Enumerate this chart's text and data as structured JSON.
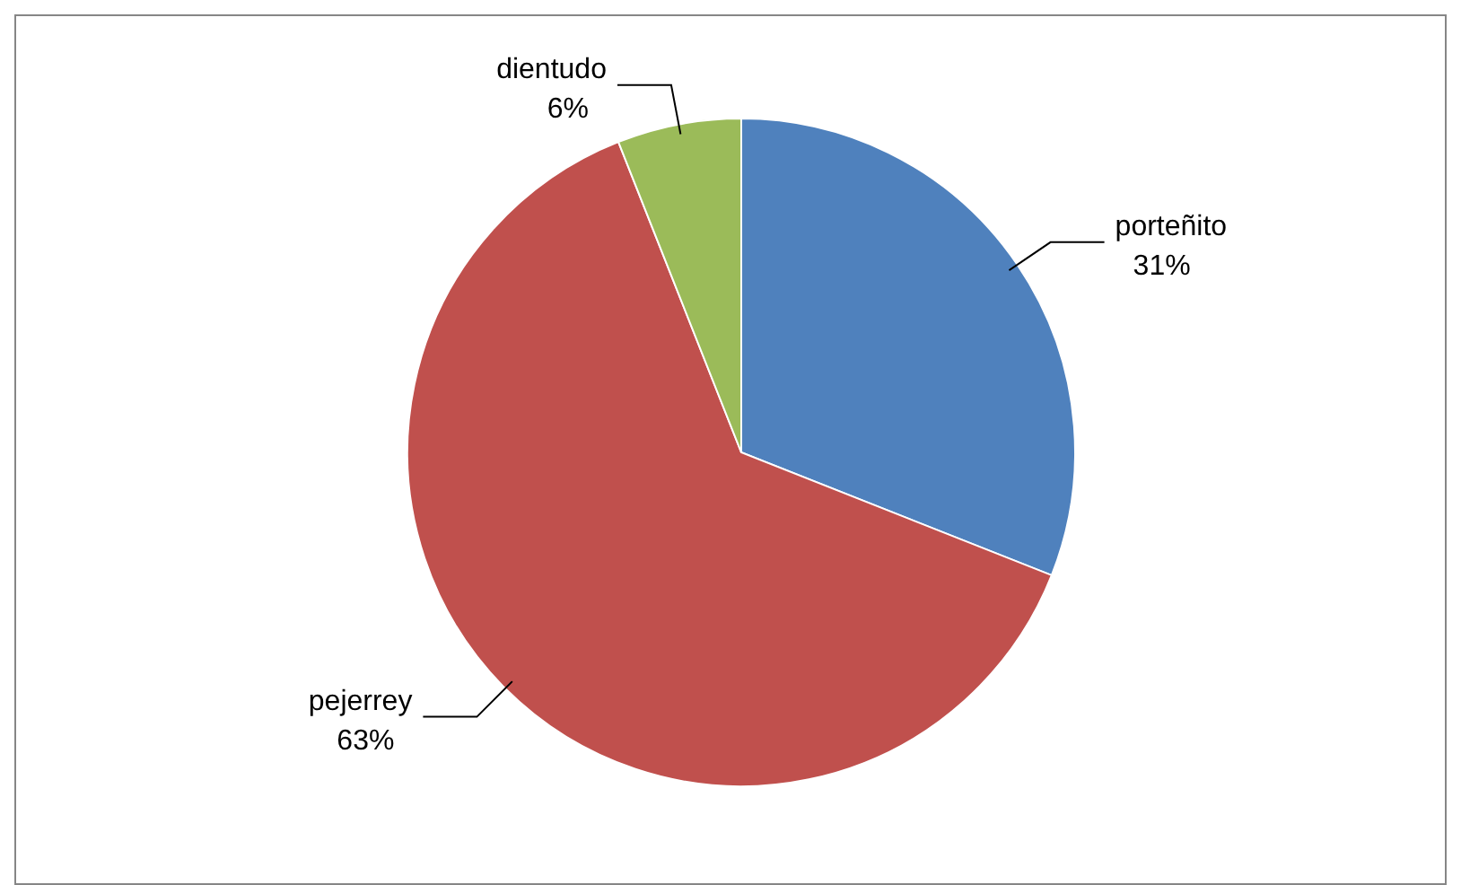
{
  "chart_data": {
    "type": "pie",
    "categories": [
      "porteñito",
      "pejerrey",
      "dientudo"
    ],
    "values": [
      31,
      63,
      6
    ],
    "value_labels": [
      "31%",
      "63%",
      "6%"
    ],
    "colors": [
      "#4f81bd",
      "#c0504d",
      "#9bbb59"
    ]
  }
}
